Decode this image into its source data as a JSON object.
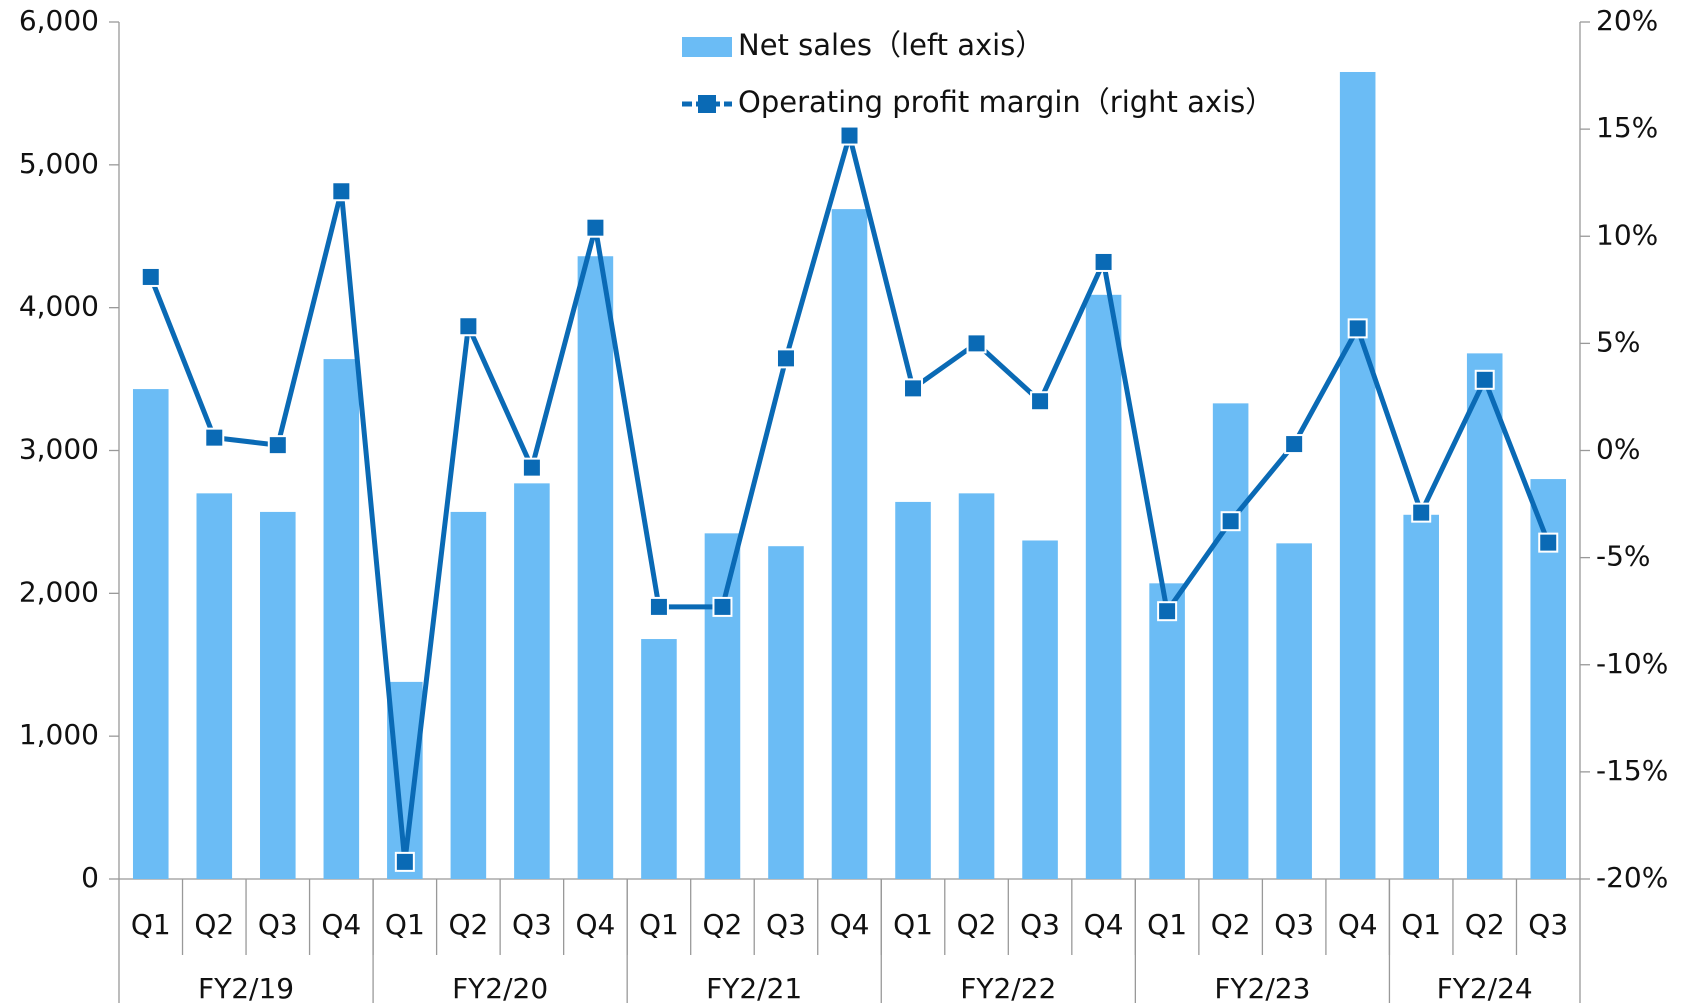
{
  "chart_data": {
    "type": "bar-line",
    "groups": [
      {
        "label": "FY2/19",
        "categories": [
          "Q1",
          "Q2",
          "Q3",
          "Q4"
        ]
      },
      {
        "label": "FY2/20",
        "categories": [
          "Q1",
          "Q2",
          "Q3",
          "Q4"
        ]
      },
      {
        "label": "FY2/21",
        "categories": [
          "Q1",
          "Q2",
          "Q3",
          "Q4"
        ]
      },
      {
        "label": "FY2/22",
        "categories": [
          "Q1",
          "Q2",
          "Q3",
          "Q4"
        ]
      },
      {
        "label": "FY2/23",
        "categories": [
          "Q1",
          "Q2",
          "Q3",
          "Q4"
        ]
      },
      {
        "label": "FY2/24",
        "categories": [
          "Q1",
          "Q2",
          "Q3"
        ]
      }
    ],
    "series": [
      {
        "name": "Net sales（left axis）",
        "type": "bar",
        "color": "#6bbcf5",
        "values": [
          3430,
          2700,
          2570,
          3640,
          1380,
          2570,
          2770,
          4360,
          1680,
          2420,
          2330,
          4690,
          2640,
          2700,
          2370,
          4090,
          2070,
          3330,
          2350,
          5650,
          2550,
          3680,
          2800
        ]
      },
      {
        "name": "Operating profit margin（right axis）",
        "type": "line",
        "axis": "y2",
        "color": "#0a6ab5",
        "values": [
          8.1,
          0.6,
          0.25,
          12.1,
          -19.2,
          5.8,
          -0.8,
          10.4,
          -7.3,
          -7.3,
          4.3,
          14.7,
          2.9,
          5.0,
          2.3,
          8.8,
          -7.5,
          -3.3,
          0.3,
          5.7,
          -2.9,
          3.3,
          -4.3
        ]
      }
    ],
    "ylim": [
      0,
      6000
    ],
    "yticks": [
      0,
      {
        "value": 1000,
        "label": "1,000"
      },
      {
        "value": 2000,
        "label": "2,000"
      },
      {
        "value": 3000,
        "label": "3,000"
      },
      {
        "value": 4000,
        "label": "4,000"
      },
      {
        "value": 5000,
        "label": "5,000"
      },
      {
        "value": 6000,
        "label": "6,000"
      }
    ],
    "y2lim": [
      -20,
      20
    ],
    "y2ticks": [
      {
        "value": -20,
        "label": "-20%"
      },
      {
        "value": -15,
        "label": "-15%"
      },
      {
        "value": -10,
        "label": "-10%"
      },
      {
        "value": -5,
        "label": "-5%"
      },
      {
        "value": 0,
        "label": "0%"
      },
      {
        "value": 5,
        "label": "5%"
      },
      {
        "value": 10,
        "label": "10%"
      },
      {
        "value": 15,
        "label": "15%"
      },
      {
        "value": 20,
        "label": "20%"
      }
    ],
    "grid": false,
    "legend": "top"
  }
}
